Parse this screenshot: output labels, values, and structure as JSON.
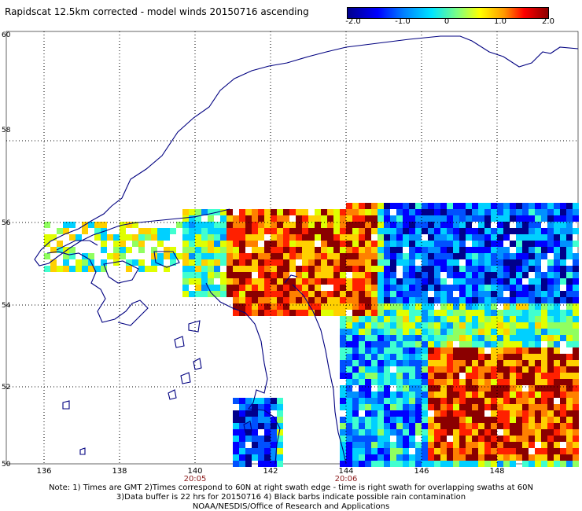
{
  "title": "Rapidscat 12.5km corrected - model winds 20150716 ascending",
  "colorbar": {
    "labels": [
      "-2.0",
      "-1.0",
      "0",
      "1.0",
      "2.0"
    ],
    "min": -2.0,
    "max": 2.0
  },
  "axes": {
    "lon_labels": [
      "136",
      "138",
      "140",
      "142",
      "144",
      "146",
      "148"
    ],
    "lat_labels": [
      "60",
      "58",
      "56",
      "54",
      "52",
      "50"
    ],
    "time_labels": [
      "20:05",
      "20:06"
    ]
  },
  "notes": [
    "Note: 1) Times are GMT 2)Times correspond to 60N at right swath edge - time is right swath for overlapping swaths at 60N",
    "3)Data buffer is 22 hrs for 20150716 4) Black barbs indicate possible rain contamination",
    "NOAA/NESDIS/Office of Research and Applications"
  ],
  "colors": {
    "coastline": "#000080",
    "grid": "#000000",
    "time_label": "#8b1a1a"
  }
}
